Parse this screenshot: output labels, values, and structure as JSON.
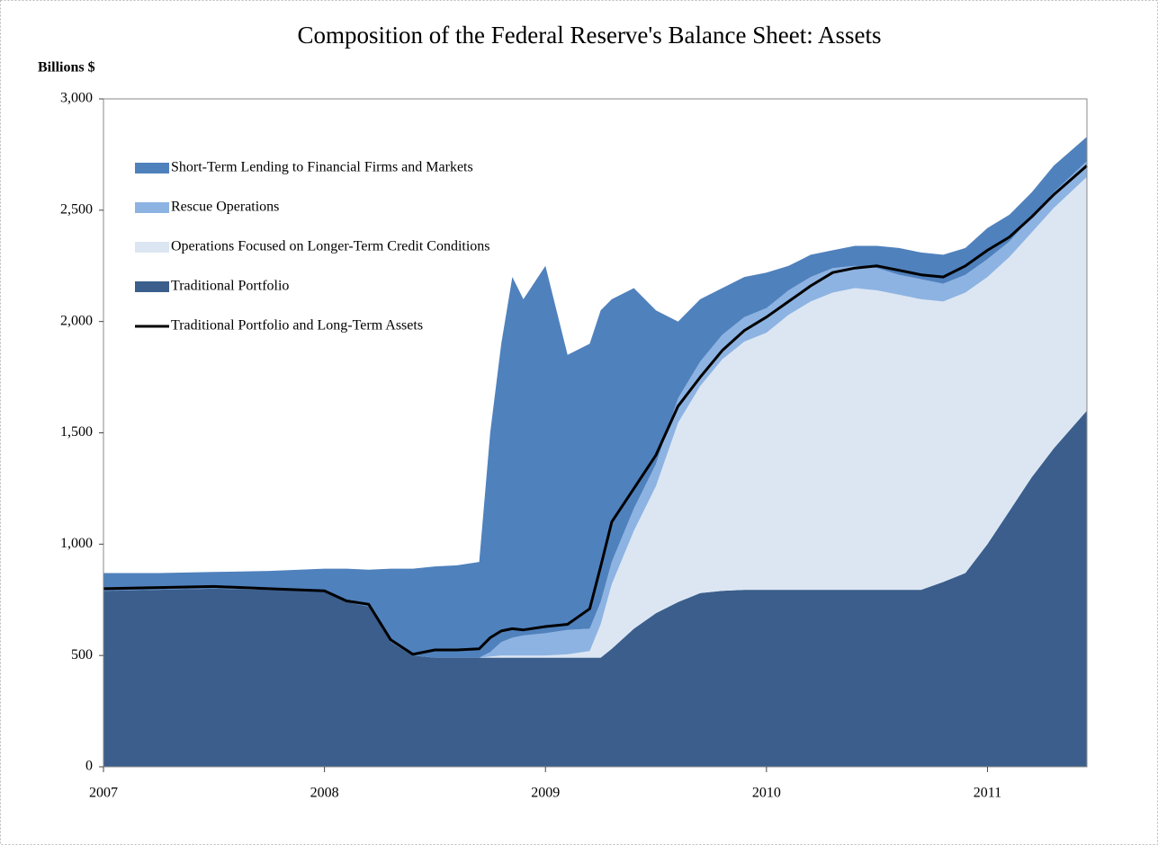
{
  "chart_data": {
    "type": "stacked_area",
    "title": "Composition of the Federal Reserve's Balance Sheet: Assets",
    "y_label": "Billions $",
    "legend": "upper left",
    "x": [
      2007.0,
      2007.25,
      2007.5,
      2007.75,
      2008.0,
      2008.1,
      2008.2,
      2008.3,
      2008.4,
      2008.5,
      2008.6,
      2008.7,
      2008.75,
      2008.8,
      2008.85,
      2008.9,
      2009.0,
      2009.1,
      2009.2,
      2009.25,
      2009.3,
      2009.4,
      2009.5,
      2009.6,
      2009.7,
      2009.8,
      2009.9,
      2010.0,
      2010.1,
      2010.2,
      2010.3,
      2010.4,
      2010.5,
      2010.6,
      2010.7,
      2010.8,
      2010.9,
      2011.0,
      2011.1,
      2011.2,
      2011.3,
      2011.45
    ],
    "xlim": [
      2007,
      2011.45
    ],
    "xticks": [
      2007,
      2008,
      2009,
      2010,
      2011
    ],
    "ylim": [
      0,
      3000
    ],
    "yticks": [
      0,
      500,
      {
        "value": 1000,
        "label": "1,000"
      },
      {
        "value": 1500,
        "label": "1,500"
      },
      {
        "value": 2000,
        "label": "2,000"
      },
      {
        "value": 2500,
        "label": "2,500"
      },
      {
        "value": 3000,
        "label": "3,000"
      }
    ],
    "series": [
      {
        "name": "Traditional Portfolio",
        "color": "#3b5e8c",
        "values": [
          790,
          795,
          800,
          795,
          790,
          740,
          720,
          560,
          500,
          490,
          490,
          490,
          490,
          490,
          490,
          490,
          490,
          490,
          490,
          490,
          530,
          620,
          690,
          740,
          780,
          790,
          795,
          795,
          795,
          795,
          795,
          795,
          795,
          795,
          795,
          830,
          870,
          1000,
          1150,
          1300,
          1430,
          1600
        ]
      },
      {
        "name": "Operations Focused on Longer-Term Credit Conditions",
        "color": "#dce6f2",
        "values": [
          0,
          0,
          0,
          0,
          0,
          0,
          0,
          0,
          0,
          0,
          0,
          0,
          5,
          10,
          10,
          10,
          10,
          15,
          30,
          150,
          290,
          440,
          570,
          805,
          930,
          1040,
          1115,
          1155,
          1235,
          1295,
          1335,
          1355,
          1345,
          1325,
          1305,
          1260,
          1260,
          1200,
          1140,
          1100,
          1080,
          1050
        ]
      },
      {
        "name": "Rescue Operations",
        "color": "#8db3e2",
        "values": [
          0,
          0,
          0,
          0,
          0,
          0,
          0,
          0,
          0,
          0,
          0,
          0,
          20,
          60,
          80,
          90,
          100,
          110,
          100,
          100,
          100,
          100,
          100,
          110,
          110,
          110,
          110,
          110,
          110,
          110,
          110,
          100,
          100,
          90,
          90,
          80,
          80,
          80,
          70,
          70,
          70,
          70
        ]
      },
      {
        "name": "Short-Term Lending to Financial Firms and Markets",
        "color": "#4f81bd",
        "values": [
          80,
          75,
          75,
          85,
          100,
          150,
          165,
          330,
          390,
          410,
          415,
          430,
          985,
          1340,
          1620,
          1510,
          1650,
          1235,
          1280,
          1310,
          1180,
          990,
          690,
          345,
          280,
          210,
          180,
          160,
          110,
          100,
          80,
          90,
          100,
          120,
          120,
          130,
          120,
          140,
          120,
          110,
          120,
          110
        ]
      }
    ],
    "lines": [
      {
        "name": "Traditional Portfolio and Long-Term Assets",
        "color": "#000000",
        "values": [
          800,
          805,
          810,
          800,
          790,
          745,
          730,
          570,
          505,
          525,
          525,
          530,
          580,
          610,
          620,
          615,
          630,
          640,
          710,
          900,
          1100,
          1250,
          1400,
          1620,
          1750,
          1870,
          1960,
          2020,
          2090,
          2160,
          2220,
          2240,
          2250,
          2230,
          2210,
          2200,
          2250,
          2320,
          2380,
          2470,
          2570,
          2700
        ]
      }
    ]
  }
}
